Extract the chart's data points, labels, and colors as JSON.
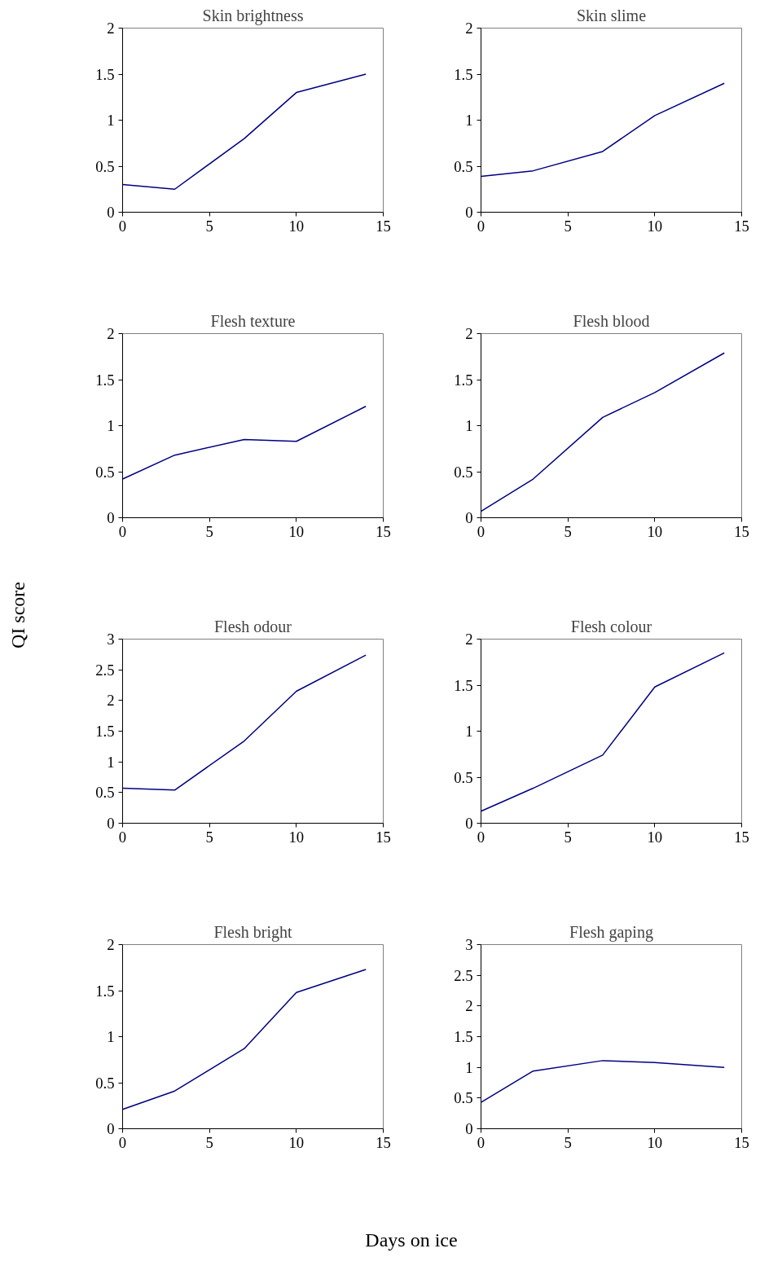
{
  "chart_data": [
    {
      "type": "line",
      "title": "Skin brightness",
      "x": [
        0,
        3,
        7,
        10,
        14
      ],
      "values": [
        0.3,
        0.25,
        0.8,
        1.3,
        1.5
      ],
      "color": "#000080",
      "xlim": [
        0,
        15
      ],
      "xticks": [
        0,
        5,
        10,
        15
      ],
      "ylim": [
        0,
        2
      ],
      "yticks": [
        0,
        0.5,
        1,
        1.5,
        2
      ],
      "grid": false
    },
    {
      "type": "line",
      "title": "Skin slime",
      "x": [
        0,
        3,
        7,
        10,
        14
      ],
      "values": [
        0.39,
        0.45,
        0.66,
        1.05,
        1.4
      ],
      "color": "#000080",
      "xlim": [
        0,
        15
      ],
      "xticks": [
        0,
        5,
        10,
        15
      ],
      "ylim": [
        0,
        2
      ],
      "yticks": [
        0,
        0.5,
        1,
        1.5,
        2
      ],
      "grid": false
    },
    {
      "type": "line",
      "title": "Flesh texture",
      "ylabel": "QI score",
      "x": [
        0,
        3,
        7,
        10,
        14
      ],
      "values": [
        0.42,
        0.68,
        0.85,
        0.83,
        1.21
      ],
      "color": "#000080",
      "xlim": [
        0,
        15
      ],
      "xticks": [
        0,
        5,
        10,
        15
      ],
      "ylim": [
        0,
        2
      ],
      "yticks": [
        0,
        0.5,
        1,
        1.5,
        2
      ],
      "grid": false
    },
    {
      "type": "line",
      "title": "Flesh blood",
      "x": [
        0,
        3,
        7,
        10,
        14
      ],
      "values": [
        0.07,
        0.42,
        1.09,
        1.36,
        1.79
      ],
      "color": "#000080",
      "xlim": [
        0,
        15
      ],
      "xticks": [
        0,
        5,
        10,
        15
      ],
      "ylim": [
        0,
        2
      ],
      "yticks": [
        0,
        0.5,
        1,
        1.5,
        2
      ],
      "grid": false
    },
    {
      "type": "line",
      "title": "Flesh odour",
      "x": [
        0,
        3,
        7,
        10,
        14
      ],
      "values": [
        0.57,
        0.54,
        1.34,
        2.15,
        2.74
      ],
      "color": "#000080",
      "xlim": [
        0,
        15
      ],
      "xticks": [
        0,
        5,
        10,
        15
      ],
      "ylim": [
        0,
        3
      ],
      "yticks": [
        0,
        0.5,
        1,
        1.5,
        2,
        2.5,
        3
      ],
      "grid": false
    },
    {
      "type": "line",
      "title": "Flesh colour",
      "x": [
        0,
        3,
        7,
        10,
        14
      ],
      "values": [
        0.13,
        0.38,
        0.74,
        1.48,
        1.85
      ],
      "color": "#000080",
      "xlim": [
        0,
        15
      ],
      "xticks": [
        0,
        5,
        10,
        15
      ],
      "ylim": [
        0,
        2
      ],
      "yticks": [
        0,
        0.5,
        1,
        1.5,
        2
      ],
      "grid": false
    },
    {
      "type": "line",
      "title": "Flesh bright",
      "x": [
        0,
        3,
        7,
        10,
        14
      ],
      "values": [
        0.21,
        0.41,
        0.87,
        1.48,
        1.73
      ],
      "color": "#000080",
      "xlim": [
        0,
        15
      ],
      "xticks": [
        0,
        5,
        10,
        15
      ],
      "ylim": [
        0,
        2
      ],
      "yticks": [
        0,
        0.5,
        1,
        1.5,
        2
      ],
      "grid": false
    },
    {
      "type": "line",
      "title": "Flesh gaping",
      "xlabel": "Days on ice",
      "x": [
        0,
        3,
        7,
        10,
        14
      ],
      "values": [
        0.43,
        0.94,
        1.11,
        1.08,
        1.0
      ],
      "color": "#000080",
      "xlim": [
        0,
        15
      ],
      "xticks": [
        0,
        5,
        10,
        15
      ],
      "ylim": [
        0,
        3
      ],
      "yticks": [
        0,
        0.5,
        1,
        1.5,
        2,
        2.5,
        3
      ],
      "grid": false
    }
  ]
}
